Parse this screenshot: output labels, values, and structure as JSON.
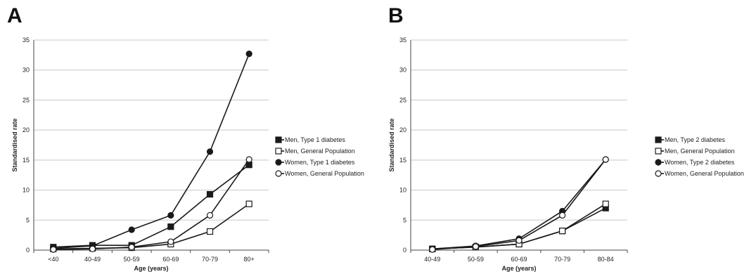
{
  "chart_data": [
    {
      "panel": "A",
      "type": "line",
      "categories": [
        "<40",
        "40-49",
        "50-59",
        "60-69",
        "70-79",
        "80+"
      ],
      "xlabel": "Age (years)",
      "ylabel": "Standardised rate",
      "ylim": [
        0,
        35
      ],
      "yticks": [
        0,
        5,
        10,
        15,
        20,
        25,
        30,
        35
      ],
      "grid": true,
      "legend": "right",
      "series": [
        {
          "name": "Men, Type 1 diabetes",
          "marker": "square-filled",
          "values": [
            0.5,
            0.8,
            0.8,
            3.9,
            9.3,
            14.2
          ]
        },
        {
          "name": "Men, General Population",
          "marker": "square-open",
          "values": [
            0.2,
            0.3,
            0.4,
            1.0,
            3.1,
            7.7
          ]
        },
        {
          "name": "Women, Type 1 diabetes",
          "marker": "circle-filled",
          "values": [
            0.3,
            0.7,
            3.4,
            5.8,
            16.4,
            32.7
          ]
        },
        {
          "name": "Women, General Population",
          "marker": "circle-open",
          "values": [
            0.1,
            0.2,
            0.5,
            1.4,
            5.8,
            15.1
          ]
        }
      ]
    },
    {
      "panel": "B",
      "type": "line",
      "categories": [
        "40-49",
        "50-59",
        "60-69",
        "70-79",
        "80-84"
      ],
      "xlabel": "Age (years)",
      "ylabel": "Standardised rate",
      "ylim": [
        0,
        35
      ],
      "yticks": [
        0,
        5,
        10,
        15,
        20,
        25,
        30,
        35
      ],
      "grid": true,
      "legend": "right",
      "series": [
        {
          "name": "Men, Type 2 diabetes",
          "marker": "square-filled",
          "values": [
            0.2,
            0.5,
            1.0,
            3.2,
            7.0
          ]
        },
        {
          "name": "Men, General Population",
          "marker": "square-open",
          "values": [
            0.2,
            0.5,
            1.0,
            3.2,
            7.7
          ]
        },
        {
          "name": "Women, Type 2 diabetes",
          "marker": "circle-filled",
          "values": [
            0.2,
            0.7,
            1.9,
            6.5,
            15.1
          ]
        },
        {
          "name": "Women, General Population",
          "marker": "circle-open",
          "values": [
            0.1,
            0.6,
            1.6,
            5.8,
            15.1
          ]
        }
      ]
    }
  ],
  "panels": {
    "a_label": "A",
    "b_label": "B"
  },
  "colors": {
    "line": "#1a1a1a",
    "grid": "#c8c8c8",
    "axis": "#444444",
    "marker_fill": "#ffffff"
  }
}
